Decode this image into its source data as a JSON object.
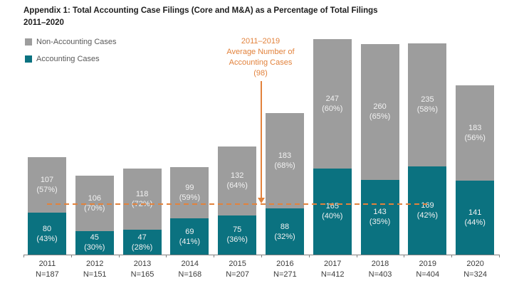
{
  "title": {
    "line1": "Appendix 1: Total Accounting Case Filings (Core and M&A) as a Percentage of Total Filings",
    "line2": "2011–2020"
  },
  "legend": {
    "items": [
      {
        "label": "Non-Accounting Cases",
        "color": "#9d9d9d"
      },
      {
        "label": "Accounting Cases",
        "color": "#0b7280"
      }
    ]
  },
  "annotation": {
    "text": "2011–2019\nAverage Number of\nAccounting Cases\n(98)",
    "color": "#e2823c"
  },
  "chart_data": {
    "type": "bar",
    "stacked": true,
    "legend_position": "top-left",
    "grid": false,
    "y_axis_visible": false,
    "categories": [
      "2011",
      "2012",
      "2013",
      "2014",
      "2015",
      "2016",
      "2017",
      "2018",
      "2019",
      "2020"
    ],
    "n_labels": [
      "N=187",
      "N=151",
      "N=165",
      "N=168",
      "N=207",
      "N=271",
      "N=412",
      "N=403",
      "N=404",
      "N=324"
    ],
    "totals": [
      187,
      151,
      165,
      168,
      207,
      271,
      412,
      403,
      404,
      324
    ],
    "series": [
      {
        "name": "Accounting Cases",
        "color": "#0b7280",
        "values": [
          80,
          45,
          47,
          69,
          75,
          88,
          165,
          143,
          169,
          141
        ],
        "pct_labels": [
          "(43%)",
          "(30%)",
          "(28%)",
          "(41%)",
          "(36%)",
          "(32%)",
          "(40%)",
          "(35%)",
          "(42%)",
          "(44%)"
        ]
      },
      {
        "name": "Non-Accounting Cases",
        "color": "#9d9d9d",
        "values": [
          107,
          106,
          118,
          99,
          132,
          183,
          247,
          260,
          235,
          183
        ],
        "pct_labels": [
          "(57%)",
          "(70%)",
          "(72%)",
          "(59%)",
          "(64%)",
          "(68%)",
          "(60%)",
          "(65%)",
          "(58%)",
          "(56%)"
        ]
      }
    ],
    "average_line": {
      "value": 98,
      "color": "#e2823c",
      "span_categories": [
        "2011",
        "2019"
      ],
      "label": "2011–2019 Average Number of Accounting Cases (98)"
    },
    "label_color_inside_bars": "#f2f2f2",
    "ylim": [
      0,
      412
    ]
  }
}
